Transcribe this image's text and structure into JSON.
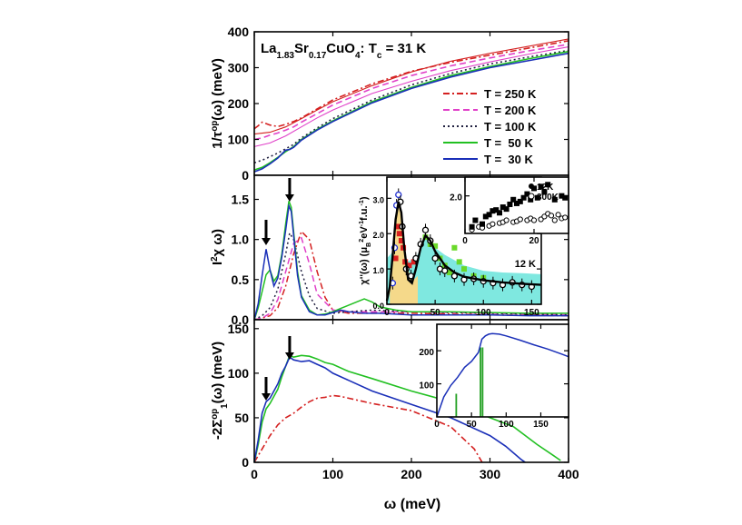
{
  "figure": {
    "xlabel": "ω (meV)",
    "x_ticks": [
      "0",
      "100",
      "200",
      "300",
      "400"
    ]
  },
  "chart_data": [
    {
      "type": "line",
      "panel": "top",
      "title": "La1.83Sr0.17CuO4: Tc = 31 K",
      "title_parts": {
        "base1": "La",
        "sub1": "1.83",
        "base2": "Sr",
        "sub2": "0.17",
        "base3": "CuO",
        "sub3": "4",
        "rest": ": T",
        "sub4": "c",
        "tail": " = 31 K"
      },
      "ylabel": "1/τop(ω) (meV)",
      "ylabel_parts": {
        "a": "1/τ",
        "sup": "op",
        "b": "(ω) (meV)"
      },
      "xlim": [
        0,
        400
      ],
      "ylim": [
        0,
        400
      ],
      "y_ticks": [
        "0",
        "100",
        "200",
        "300",
        "400"
      ],
      "legend_position": "right",
      "series": [
        {
          "name": "T = 250 K",
          "color": "#d42020",
          "dash": "7,3,2,3",
          "x": [
            0,
            5,
            10,
            20,
            30,
            40,
            50,
            60,
            80,
            100,
            150,
            200,
            250,
            300,
            350,
            400
          ],
          "y": [
            130,
            138,
            148,
            140,
            136,
            142,
            150,
            160,
            185,
            210,
            255,
            290,
            315,
            335,
            355,
            375
          ]
        },
        {
          "name": "T = 200 K",
          "color": "#e040c8",
          "dash": "7,4",
          "x": [
            0,
            10,
            20,
            30,
            40,
            50,
            60,
            80,
            100,
            150,
            200,
            250,
            300,
            350,
            400
          ],
          "y": [
            100,
            104,
            112,
            118,
            126,
            135,
            148,
            172,
            196,
            242,
            278,
            305,
            327,
            347,
            365
          ]
        },
        {
          "name": "T = 100 K",
          "color": "#202040",
          "dash": "2,3",
          "x": [
            0,
            10,
            20,
            30,
            40,
            50,
            60,
            80,
            100,
            150,
            200,
            250,
            300,
            350,
            400
          ],
          "y": [
            35,
            42,
            52,
            62,
            74,
            86,
            104,
            132,
            158,
            210,
            252,
            284,
            310,
            330,
            348
          ]
        },
        {
          "name": "T =  50 K",
          "color": "#22c022",
          "dash": "",
          "x": [
            0,
            10,
            20,
            30,
            40,
            50,
            60,
            80,
            100,
            150,
            200,
            250,
            300,
            350,
            400
          ],
          "y": [
            15,
            22,
            35,
            50,
            66,
            80,
            100,
            128,
            152,
            205,
            245,
            278,
            303,
            325,
            345
          ]
        },
        {
          "name": "T =  30 K",
          "color": "#1a2fb8",
          "dash": "",
          "x": [
            0,
            10,
            20,
            30,
            40,
            45,
            50,
            60,
            80,
            100,
            150,
            200,
            250,
            300,
            350,
            400
          ],
          "y": [
            10,
            18,
            32,
            48,
            70,
            72,
            78,
            98,
            126,
            150,
            202,
            242,
            274,
            300,
            320,
            340
          ]
        }
      ],
      "extra_curves": [
        {
          "color": "#d42020",
          "dash": "",
          "x": [
            0,
            20,
            40,
            60,
            80,
            100,
            150,
            200,
            250,
            300,
            350,
            400
          ],
          "y": [
            115,
            120,
            135,
            158,
            182,
            205,
            250,
            288,
            318,
            340,
            360,
            380
          ]
        },
        {
          "color": "#e040c8",
          "dash": "",
          "x": [
            0,
            20,
            40,
            60,
            80,
            100,
            150,
            200,
            250,
            300,
            350,
            400
          ],
          "y": [
            80,
            90,
            110,
            135,
            160,
            182,
            228,
            262,
            292,
            316,
            338,
            358
          ]
        }
      ]
    },
    {
      "type": "line",
      "panel": "middle",
      "ylabel": "I²χ(ω)",
      "ylabel_parts": {
        "a": "I",
        "sup": "2",
        "b": "χ ω)"
      },
      "xlim": [
        0,
        400
      ],
      "ylim": [
        0,
        1.8
      ],
      "y_ticks": [
        "0.0",
        "0.5",
        "1.0",
        "1.5"
      ],
      "arrows_x": [
        15,
        45
      ],
      "series": [
        {
          "name": "30 K",
          "color": "#1a2fb8",
          "dash": "",
          "x": [
            0,
            5,
            10,
            15,
            20,
            25,
            30,
            35,
            40,
            44,
            47,
            50,
            55,
            60,
            70,
            80,
            90,
            100,
            110,
            120,
            140,
            160,
            200,
            250,
            300,
            350,
            400
          ],
          "y": [
            0,
            0.2,
            0.55,
            0.88,
            0.62,
            0.42,
            0.52,
            0.78,
            1.12,
            1.42,
            1.35,
            1.05,
            0.55,
            0.28,
            0.1,
            0.06,
            0.06,
            0.09,
            0.12,
            0.1,
            0.08,
            0.08,
            0.06,
            0.06,
            0.06,
            0.05,
            0.05
          ]
        },
        {
          "name": "50 K",
          "color": "#22c022",
          "dash": "",
          "x": [
            0,
            5,
            10,
            15,
            20,
            25,
            30,
            35,
            40,
            44,
            47,
            50,
            55,
            60,
            70,
            80,
            90,
            100,
            110,
            120,
            130,
            140,
            150,
            160,
            180,
            200,
            250,
            300,
            350,
            400
          ],
          "y": [
            0,
            0.15,
            0.35,
            0.56,
            0.62,
            0.48,
            0.55,
            0.82,
            1.2,
            1.48,
            1.4,
            1.1,
            0.6,
            0.3,
            0.12,
            0.06,
            0.07,
            0.1,
            0.14,
            0.18,
            0.22,
            0.26,
            0.22,
            0.16,
            0.12,
            0.1,
            0.1,
            0.09,
            0.08,
            0.08
          ]
        },
        {
          "name": "100 K",
          "color": "#202040",
          "dash": "2,3",
          "x": [
            0,
            10,
            20,
            30,
            40,
            45,
            50,
            60,
            70,
            80,
            100,
            120,
            150,
            200,
            300,
            400
          ],
          "y": [
            0,
            0.05,
            0.15,
            0.38,
            0.82,
            1.08,
            1.0,
            0.6,
            0.3,
            0.14,
            0.08,
            0.1,
            0.12,
            0.1,
            0.08,
            0.06
          ]
        },
        {
          "name": "200 K",
          "color": "#e040c8",
          "dash": "7,4",
          "x": [
            0,
            10,
            20,
            30,
            40,
            50,
            60,
            70,
            80,
            100,
            120,
            150,
            200,
            300,
            400
          ],
          "y": [
            0,
            0.02,
            0.08,
            0.25,
            0.6,
            0.95,
            1.02,
            0.7,
            0.32,
            0.12,
            0.1,
            0.1,
            0.1,
            0.08,
            0.06
          ]
        },
        {
          "name": "250 K",
          "color": "#d42020",
          "dash": "7,3,2,3",
          "x": [
            0,
            10,
            20,
            30,
            40,
            50,
            60,
            70,
            80,
            90,
            100,
            120,
            150,
            200,
            300,
            400
          ],
          "y": [
            0,
            0.02,
            0.05,
            0.15,
            0.42,
            0.82,
            1.1,
            1.0,
            0.6,
            0.28,
            0.12,
            0.08,
            0.08,
            0.08,
            0.06,
            0.05
          ]
        }
      ]
    },
    {
      "type": "scatter",
      "panel": "middle-inset-1",
      "ylabel": "χ''(ω) (μB²eV⁻¹f.u.⁻¹)",
      "ylabel_parts": {
        "a": "χ''(ω) (μ",
        "sub": "B",
        "sup1": "2",
        "b": "eV",
        "sup2": "-1",
        "c": "f.u.",
        "sup3": "-1",
        "d": ")"
      },
      "annotation": "12 K",
      "xlim": [
        0,
        160
      ],
      "ylim": [
        0,
        3.6
      ],
      "x_ticks": [
        "0",
        "50",
        "100",
        "150"
      ],
      "y_ticks": [
        "0.0",
        "1.0",
        "2.0",
        "3.0"
      ],
      "fit_curve": {
        "x": [
          0,
          3,
          6,
          9,
          12,
          15,
          18,
          22,
          26,
          30,
          35,
          40,
          45,
          50,
          60,
          70,
          80,
          100,
          120,
          140,
          160
        ],
        "y": [
          0.1,
          0.5,
          1.4,
          2.4,
          2.9,
          2.6,
          1.6,
          0.7,
          0.6,
          1.0,
          1.6,
          1.95,
          1.8,
          1.5,
          1.1,
          0.9,
          0.78,
          0.68,
          0.62,
          0.58,
          0.55
        ]
      },
      "points_open": {
        "x": [
          6,
          8,
          10,
          12,
          14,
          16,
          20,
          25,
          30,
          35,
          40,
          45,
          50,
          55,
          60,
          70,
          80,
          90,
          100,
          110,
          120,
          130,
          140,
          150
        ],
        "y": [
          0.6,
          1.6,
          2.8,
          3.1,
          2.9,
          2.2,
          1.0,
          0.8,
          1.3,
          1.7,
          2.1,
          1.8,
          1.3,
          1.0,
          0.95,
          0.8,
          0.7,
          0.72,
          0.65,
          0.6,
          0.55,
          0.62,
          0.55,
          0.5
        ]
      },
      "points_red": {
        "x": [
          9,
          11,
          13,
          15,
          17,
          19,
          23,
          28
        ],
        "y": [
          1.3,
          2.2,
          2.0,
          1.8,
          1.6,
          1.2,
          1.1,
          1.2
        ]
      },
      "points_green": {
        "x": [
          40,
          45,
          50,
          55,
          60,
          65,
          70,
          75,
          80,
          90,
          100
        ],
        "y": [
          1.9,
          1.7,
          1.65,
          1.3,
          1.1,
          0.9,
          1.6,
          1.2,
          1.0,
          0.8,
          0.75
        ]
      },
      "shade_yellow": {
        "x": [
          3,
          8,
          12,
          16,
          20,
          24,
          28,
          32
        ],
        "y": [
          0.3,
          2.0,
          2.9,
          2.2,
          1.2,
          0.8,
          0.7,
          0.8
        ]
      },
      "shade_cyan": {
        "x": [
          0,
          10,
          20,
          30,
          40,
          50,
          60,
          80,
          100,
          120,
          140,
          160
        ],
        "y": [
          1.3,
          1.6,
          1.2,
          1.3,
          1.9,
          1.6,
          1.4,
          1.1,
          0.95,
          0.9,
          0.88,
          0.85
        ]
      }
    },
    {
      "type": "scatter",
      "panel": "middle-inset-2",
      "xlim": [
        0,
        30
      ],
      "ylim": [
        0,
        3
      ],
      "x_ticks": [
        "0",
        "20"
      ],
      "y_ticks": [
        "2.0"
      ],
      "series": [
        {
          "name": "12K",
          "marker": "filled",
          "x": [
            2,
            3,
            5,
            6,
            7,
            8,
            9,
            10,
            11,
            12,
            13,
            14,
            15,
            16,
            17,
            18,
            19,
            20,
            21,
            22,
            23,
            24,
            26,
            28,
            29
          ],
          "y": [
            0.35,
            0.7,
            0.5,
            0.9,
            1.0,
            1.2,
            1.25,
            1.1,
            1.4,
            1.3,
            1.55,
            1.8,
            1.6,
            1.7,
            1.9,
            2.1,
            1.8,
            2.4,
            1.9,
            2.5,
            2.2,
            2.6,
            1.8,
            2.0,
            1.9
          ]
        },
        {
          "name": "300K",
          "marker": "open",
          "x": [
            2,
            4,
            5,
            7,
            8,
            10,
            11,
            12,
            14,
            15,
            16,
            18,
            19,
            20,
            22,
            23,
            24,
            25,
            26,
            27,
            28,
            29
          ],
          "y": [
            0.2,
            0.35,
            0.3,
            0.4,
            0.5,
            0.55,
            0.6,
            0.7,
            0.6,
            0.65,
            0.75,
            0.7,
            0.8,
            0.7,
            0.75,
            0.9,
            1.05,
            0.95,
            0.7,
            1.0,
            0.8,
            0.85
          ]
        }
      ]
    },
    {
      "type": "line",
      "panel": "bottom",
      "ylabel": "-2Σop1(ω) (meV)",
      "ylabel_parts": {
        "a": "-2Σ",
        "sup": "op",
        "sub": "1",
        "b": "(ω) (meV)"
      },
      "xlim": [
        0,
        400
      ],
      "ylim": [
        0,
        160
      ],
      "y_ticks": [
        "0",
        "50",
        "100",
        "150"
      ],
      "arrows_x": [
        15,
        45
      ],
      "series": [
        {
          "name": "30 K",
          "color": "#1a2fb8",
          "dash": "",
          "x": [
            0,
            5,
            10,
            15,
            20,
            25,
            30,
            35,
            40,
            45,
            50,
            60,
            70,
            80,
            90,
            100,
            120,
            150,
            200,
            250,
            300,
            320,
            340,
            345
          ],
          "y": [
            0,
            25,
            55,
            68,
            72,
            80,
            88,
            100,
            108,
            118,
            115,
            113,
            114,
            110,
            106,
            100,
            92,
            80,
            65,
            50,
            30,
            18,
            3,
            0
          ]
        },
        {
          "name": "50 K",
          "color": "#22c022",
          "dash": "",
          "x": [
            0,
            5,
            10,
            15,
            20,
            25,
            30,
            35,
            40,
            45,
            50,
            60,
            70,
            80,
            90,
            100,
            120,
            150,
            200,
            250,
            300,
            330,
            360,
            380,
            390
          ],
          "y": [
            0,
            20,
            45,
            60,
            66,
            74,
            82,
            96,
            108,
            120,
            118,
            120,
            119,
            116,
            112,
            110,
            102,
            94,
            80,
            68,
            50,
            40,
            20,
            8,
            2
          ]
        },
        {
          "name": "250 K",
          "color": "#d42020",
          "dash": "7,3,2,3",
          "x": [
            0,
            10,
            20,
            30,
            40,
            50,
            60,
            70,
            80,
            90,
            100,
            110,
            120,
            150,
            200,
            250,
            280,
            290
          ],
          "y": [
            0,
            15,
            30,
            42,
            50,
            55,
            62,
            68,
            72,
            73,
            75,
            74,
            72,
            66,
            58,
            40,
            15,
            0
          ]
        }
      ]
    },
    {
      "type": "line",
      "panel": "bottom-inset",
      "xlim": [
        0,
        190
      ],
      "ylim": [
        0,
        280
      ],
      "x_ticks": [
        "0",
        "50",
        "100",
        "150"
      ],
      "y_ticks": [
        "100",
        "200"
      ],
      "curve": {
        "x": [
          0,
          5,
          10,
          20,
          30,
          40,
          50,
          60,
          65,
          70,
          75,
          80,
          90,
          100,
          120,
          140,
          160,
          180,
          190
        ],
        "y": [
          0,
          30,
          60,
          95,
          120,
          150,
          168,
          195,
          235,
          245,
          250,
          252,
          250,
          245,
          232,
          218,
          205,
          190,
          182
        ]
      },
      "spikes_x": [
        28,
        63,
        66
      ]
    }
  ],
  "legend": [
    "T = 250 K",
    "T = 200 K",
    "T = 100 K",
    "T =  50 K",
    "T =  30 K"
  ]
}
